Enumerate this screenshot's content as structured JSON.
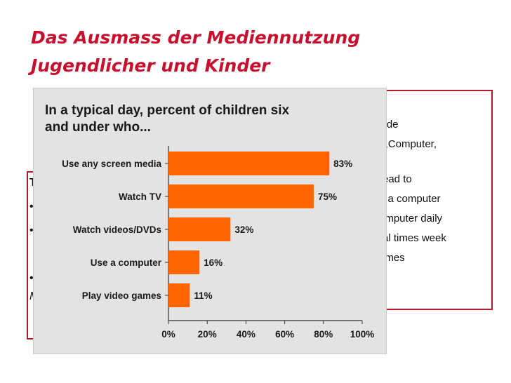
{
  "slide": {
    "title_line1": "Das Ausmass der Mediennutzung",
    "title_line2": "Jugendlicher und Kinder"
  },
  "background_text": {
    "right_lines": [
      "side",
      "V,Computer,",
      "read to",
      "d a computer",
      "omputer daily",
      "ral times week",
      "ames"
    ],
    "left_fragments": [
      "T",
      "•",
      "•",
      "•",
      "M"
    ]
  },
  "colors": {
    "title": "#c8102e",
    "box_border": "#b3192b",
    "bar": "#ff6600"
  },
  "chart_data": {
    "type": "bar",
    "orientation": "horizontal",
    "title_lines": [
      "In a typical day, percent of children six",
      "and under who..."
    ],
    "categories": [
      "Use any screen media",
      "Watch TV",
      "Watch videos/DVDs",
      "Use a computer",
      "Play video games"
    ],
    "values": [
      83,
      75,
      32,
      16,
      11
    ],
    "value_labels": [
      "83%",
      "75%",
      "32%",
      "16%",
      "11%"
    ],
    "xlim": [
      0,
      100
    ],
    "xticks": [
      0,
      20,
      40,
      60,
      80,
      100
    ],
    "xtick_labels": [
      "0%",
      "20%",
      "40%",
      "60%",
      "80%",
      "100%"
    ],
    "grid": false,
    "legend": "none"
  }
}
